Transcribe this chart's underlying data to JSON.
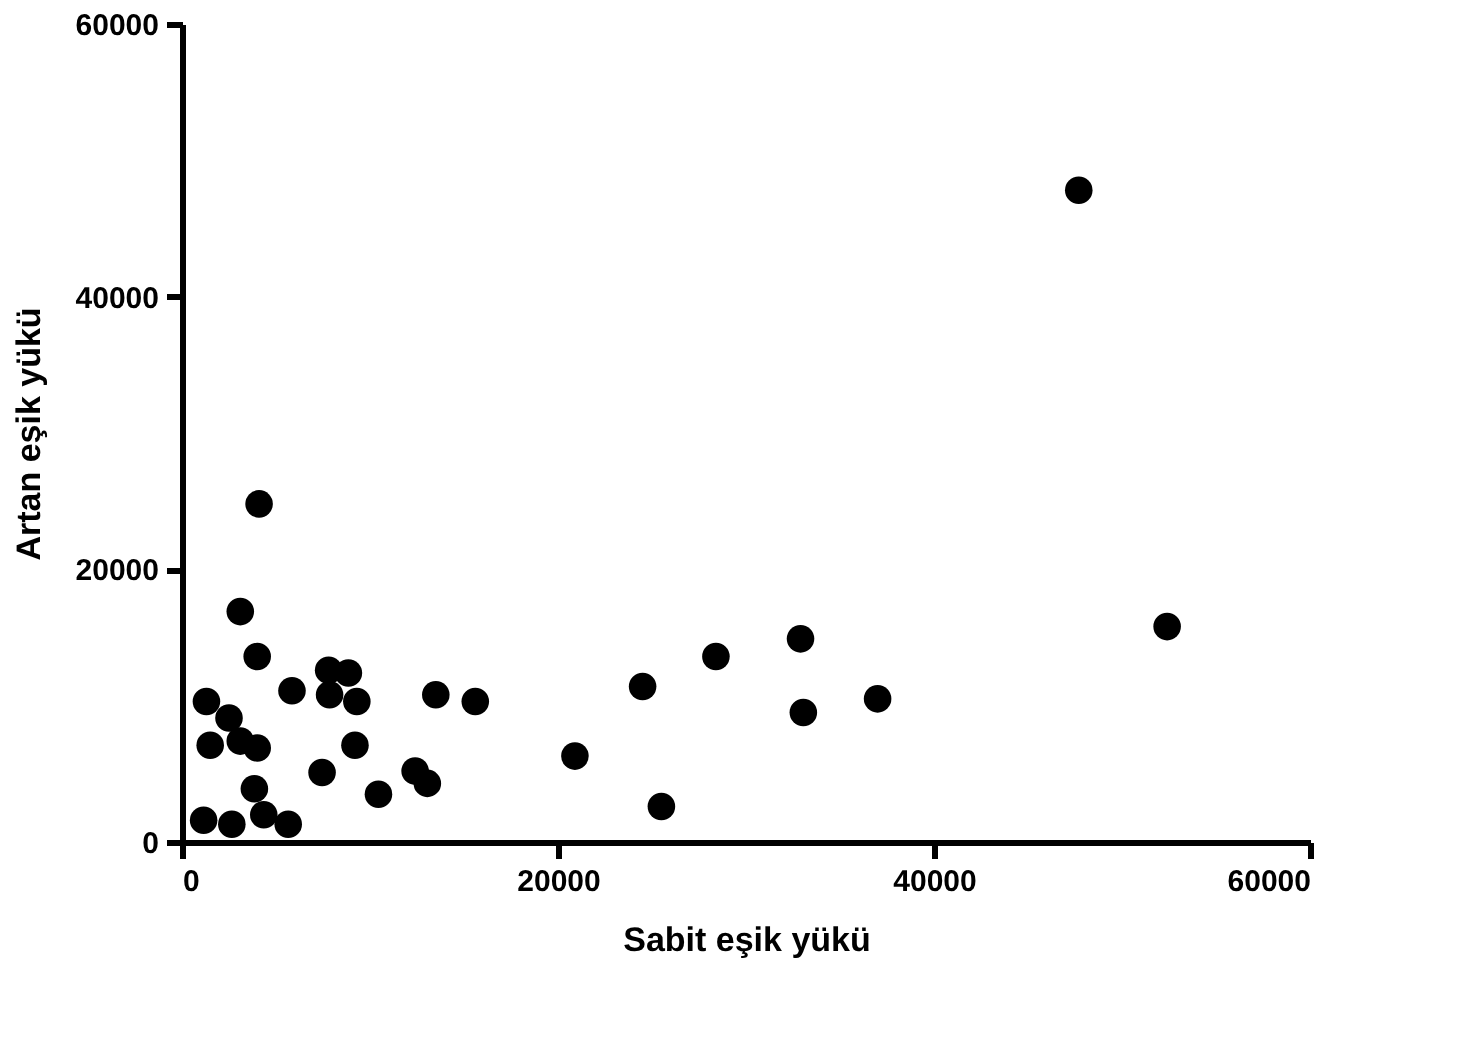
{
  "chart_data": {
    "type": "scatter",
    "xlabel": "Sabit eşik yükü",
    "ylabel": "Artan eşik yükü",
    "xlim": [
      0,
      60000
    ],
    "ylim": [
      0,
      60000
    ],
    "xticks": [
      0,
      20000,
      40000,
      60000
    ],
    "yticks": [
      0,
      20000,
      40000,
      60000
    ],
    "grid": false,
    "marker": "circle",
    "series": [
      {
        "color": "#000000",
        "x": [
          4100,
          3100,
          4000,
          5850,
          7800,
          8850,
          7850,
          9300,
          13500,
          15600,
          1300,
          2500,
          1500,
          3100,
          4000,
          9200,
          7450,
          12400,
          13050,
          10450,
          3850,
          4350,
          1150,
          2650,
          5650,
          20900,
          24500,
          25500,
          28400,
          32900,
          33050,
          37000,
          52400,
          47700
        ],
        "values": [
          24800,
          16900,
          13600,
          11100,
          12600,
          12400,
          10800,
          10300,
          10800,
          10300,
          10300,
          9100,
          7100,
          7400,
          6900,
          7100,
          5100,
          5200,
          4300,
          3500,
          3900,
          2000,
          1600,
          1300,
          1300,
          6300,
          11400,
          2600,
          13600,
          14900,
          9500,
          10500,
          15800,
          47800
        ]
      }
    ]
  }
}
